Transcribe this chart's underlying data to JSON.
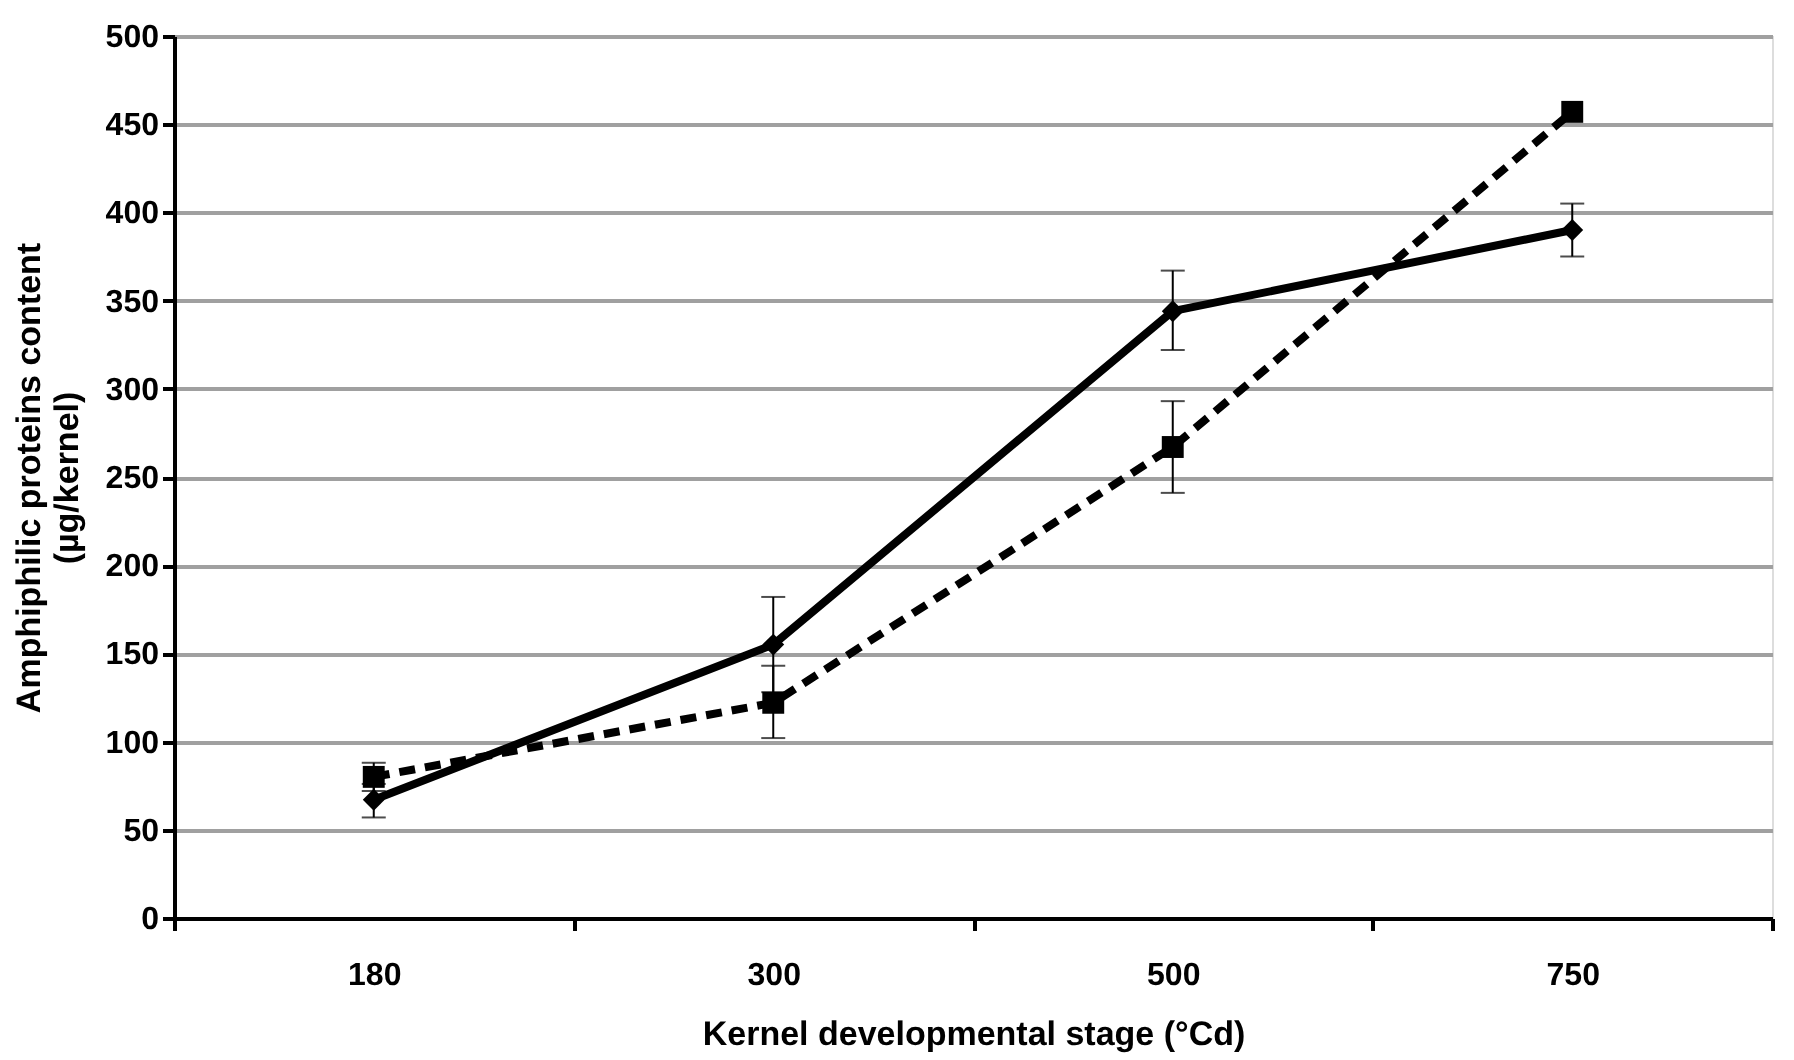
{
  "chart_data": {
    "type": "line",
    "xlabel": "Kernel developmental stage (°Cd)",
    "ylabel": "Amphiphilic proteins content\n(µg/kernel)",
    "categories": [
      "180",
      "300",
      "500",
      "750"
    ],
    "series": [
      {
        "color": "#000000",
        "marker": "diamond",
        "line_style": "solid",
        "values": [
          67,
          155,
          344,
          390
        ],
        "errors": [
          [
            57,
            76
          ],
          [
            128,
            182
          ],
          [
            322,
            367
          ],
          [
            375,
            405
          ]
        ]
      },
      {
        "color": "#000000",
        "marker": "square",
        "line_style": "dashed",
        "values": [
          80,
          122,
          267,
          457
        ],
        "errors": [
          [
            72,
            88
          ],
          [
            102,
            143
          ],
          [
            241,
            293
          ],
          null
        ]
      }
    ],
    "ylim": [
      0,
      500
    ],
    "yticks": [
      0,
      50,
      100,
      150,
      200,
      250,
      300,
      350,
      400,
      450,
      500
    ],
    "grid": "y"
  }
}
